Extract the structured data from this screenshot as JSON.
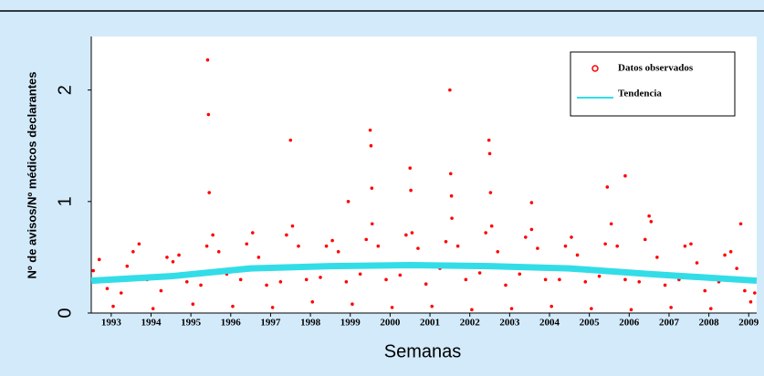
{
  "chart_data": {
    "type": "scatter",
    "x_label": "Semanas",
    "y_label": "Nº de avisos/Nº médicos declarantes",
    "xlim": [
      1993,
      2009.7
    ],
    "ylim": [
      0,
      2.48
    ],
    "xticks": [
      {
        "value": 1993.5,
        "label": "1993"
      },
      {
        "value": 1994.5,
        "label": "1994"
      },
      {
        "value": 1995.5,
        "label": "1995"
      },
      {
        "value": 1996.5,
        "label": "1996"
      },
      {
        "value": 1997.5,
        "label": "1997"
      },
      {
        "value": 1998.5,
        "label": "1998"
      },
      {
        "value": 1999.5,
        "label": "1999"
      },
      {
        "value": 2000.5,
        "label": "2000"
      },
      {
        "value": 2001.5,
        "label": "2001"
      },
      {
        "value": 2002.5,
        "label": "2002"
      },
      {
        "value": 2003.5,
        "label": "2003"
      },
      {
        "value": 2004.5,
        "label": "2004"
      },
      {
        "value": 2005.5,
        "label": "2005"
      },
      {
        "value": 2006.5,
        "label": "2006"
      },
      {
        "value": 2007.5,
        "label": "2007"
      },
      {
        "value": 2008.5,
        "label": "2008"
      },
      {
        "value": 2009.5,
        "label": "2009"
      }
    ],
    "yticks": [
      0,
      1,
      2
    ],
    "legend": "top-right",
    "series": [
      {
        "name": "Datos observados",
        "color": "#ff0000",
        "x": [
          1993.05,
          1993.2,
          1993.4,
          1993.55,
          1993.75,
          1993.9,
          1994.05,
          1994.2,
          1994.4,
          1994.55,
          1994.75,
          1994.9,
          1995.05,
          1995.2,
          1995.4,
          1995.55,
          1995.75,
          1995.9,
          1996.05,
          1996.2,
          1996.4,
          1996.55,
          1996.75,
          1996.9,
          1997.05,
          1997.2,
          1997.4,
          1997.55,
          1997.75,
          1997.9,
          1998.05,
          1998.2,
          1998.4,
          1998.55,
          1998.75,
          1998.9,
          1999.05,
          1999.2,
          1999.4,
          1999.55,
          1999.75,
          1999.9,
          2000.05,
          2000.2,
          2000.4,
          2000.55,
          2000.75,
          2000.9,
          2001.05,
          2001.2,
          2001.4,
          2001.55,
          2001.75,
          2001.9,
          2002.05,
          2002.2,
          2002.4,
          2002.55,
          2002.75,
          2002.9,
          2003.05,
          2003.2,
          2003.4,
          2003.55,
          2003.75,
          2003.9,
          2004.05,
          2004.2,
          2004.4,
          2004.55,
          2004.75,
          2004.9,
          2005.05,
          2005.2,
          2005.4,
          2005.55,
          2005.75,
          2005.9,
          2006.05,
          2006.2,
          2006.4,
          2006.55,
          2006.75,
          2006.9,
          2007.05,
          2007.2,
          2007.4,
          2007.55,
          2007.75,
          2007.9,
          2008.05,
          2008.2,
          2008.4,
          2008.55,
          2008.75,
          2008.9,
          2009.05,
          2009.2,
          2009.4,
          2009.55,
          2009.65,
          1995.92,
          1995.94,
          1995.96,
          1998.0,
          1999.45,
          2000.0,
          2000.02,
          2000.04,
          2001.0,
          2001.02,
          2002.0,
          2002.02,
          2002.04,
          2002.98,
          2003.0,
          2003.02,
          2004.05,
          2005.95,
          2006.4,
          2007.0,
          2009.3
        ],
        "values": [
          0.38,
          0.48,
          0.22,
          0.06,
          0.18,
          0.42,
          0.55,
          0.62,
          0.3,
          0.04,
          0.2,
          0.5,
          0.46,
          0.52,
          0.28,
          0.08,
          0.25,
          0.6,
          0.7,
          0.55,
          0.35,
          0.06,
          0.3,
          0.62,
          0.72,
          0.5,
          0.25,
          0.05,
          0.28,
          0.7,
          0.78,
          0.6,
          0.3,
          0.1,
          0.32,
          0.6,
          0.65,
          0.55,
          0.28,
          0.08,
          0.35,
          0.66,
          0.8,
          0.6,
          0.3,
          0.05,
          0.34,
          0.7,
          0.72,
          0.58,
          0.26,
          0.06,
          0.4,
          0.64,
          0.85,
          0.6,
          0.3,
          0.03,
          0.36,
          0.72,
          0.78,
          0.55,
          0.25,
          0.04,
          0.35,
          0.68,
          0.75,
          0.58,
          0.3,
          0.06,
          0.3,
          0.6,
          0.68,
          0.52,
          0.28,
          0.04,
          0.33,
          0.62,
          0.8,
          0.6,
          0.3,
          0.03,
          0.28,
          0.66,
          0.82,
          0.5,
          0.25,
          0.05,
          0.3,
          0.6,
          0.62,
          0.45,
          0.2,
          0.04,
          0.28,
          0.52,
          0.55,
          0.4,
          0.2,
          0.1,
          0.18,
          2.27,
          1.78,
          1.08,
          1.55,
          1.0,
          1.64,
          1.5,
          1.12,
          1.3,
          1.1,
          2.0,
          1.25,
          1.05,
          1.55,
          1.43,
          1.08,
          0.99,
          1.13,
          1.23,
          0.87,
          0.8
        ]
      },
      {
        "name": "Tendencia",
        "color": "#33dde8",
        "type": "line",
        "x": [
          1993,
          1995,
          1997,
          1999,
          2001,
          2003,
          2005,
          2007,
          2009.7
        ],
        "values": [
          0.29,
          0.33,
          0.4,
          0.42,
          0.43,
          0.42,
          0.4,
          0.35,
          0.29
        ]
      }
    ]
  }
}
